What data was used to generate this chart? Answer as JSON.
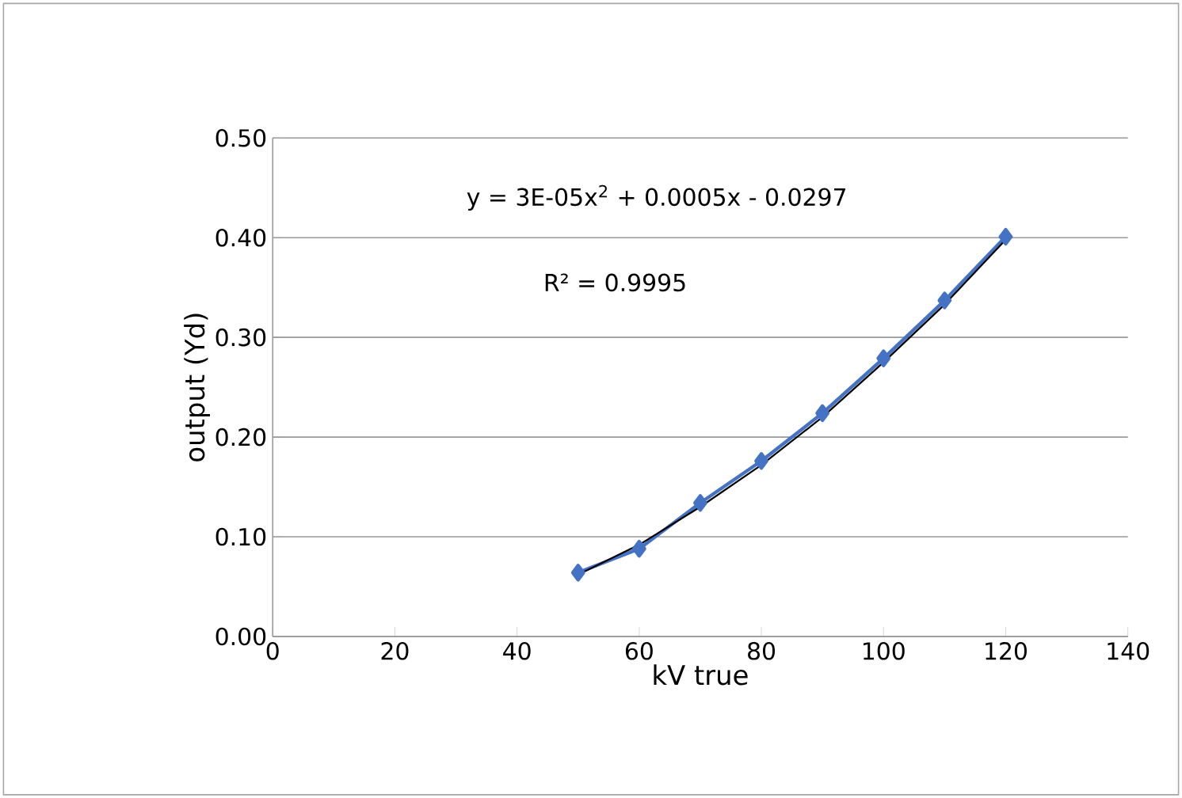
{
  "chart_data": {
    "type": "line",
    "xlabel": "kV true",
    "ylabel": "output (Yd)",
    "series": [
      {
        "color": "#4472c4",
        "marker": "diamond",
        "x": [
          50,
          60,
          70,
          80,
          90,
          100,
          110,
          120
        ],
        "values": [
          0.064,
          0.088,
          0.134,
          0.176,
          0.224,
          0.279,
          0.337,
          0.401
        ]
      },
      {
        "color": "#000000",
        "marker": "none",
        "x": [
          50,
          60,
          70,
          80,
          90,
          100,
          110,
          120
        ],
        "values": [
          0.062,
          0.092,
          0.13,
          0.172,
          0.22,
          0.275,
          0.333,
          0.398
        ]
      }
    ],
    "annotations": [
      "y = 3E-05x$^{2}$ + 0.0005x - 0.0297",
      "R² = 0.9995"
    ],
    "xlim": [
      0,
      140
    ],
    "xticks": [
      0,
      20,
      40,
      60,
      80,
      100,
      120,
      140
    ],
    "ylim": [
      0,
      0.5
    ],
    "yticks": [
      {
        "value": 0,
        "label": "0.00"
      },
      {
        "value": 0.1,
        "label": "0.10"
      },
      {
        "value": 0.2,
        "label": "0.20"
      },
      {
        "value": 0.3,
        "label": "0.30"
      },
      {
        "value": 0.4,
        "label": "0.40"
      },
      {
        "value": 0.5,
        "label": "0.50"
      }
    ],
    "grid": "y"
  }
}
